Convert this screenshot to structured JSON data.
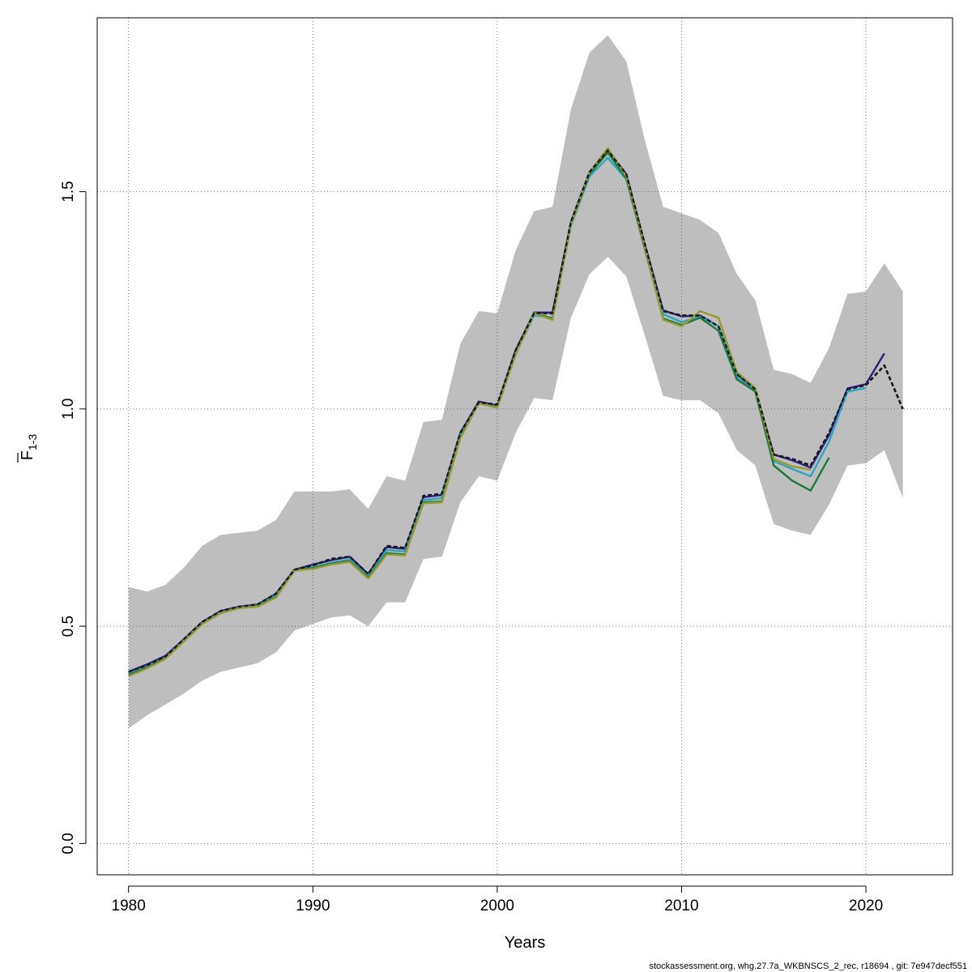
{
  "chart_data": {
    "type": "line",
    "xlabel": "Years",
    "ylabel_main": "F",
    "ylabel_sub": "1-3",
    "xlim": [
      1978.3,
      2024.7
    ],
    "ylim": [
      -0.072,
      1.9
    ],
    "x_ticks": [
      1980,
      1990,
      2000,
      2010,
      2020
    ],
    "y_ticks": [
      0.0,
      0.5,
      1.0,
      1.5
    ],
    "x_tick_labels": [
      "1980",
      "1990",
      "2000",
      "2010",
      "2020"
    ],
    "y_tick_labels": [
      "0.0",
      "0.5",
      "1.0",
      "1.5"
    ],
    "grid": true,
    "band": {
      "color": "#bebebe",
      "x": [
        1980,
        1981,
        1982,
        1983,
        1984,
        1985,
        1986,
        1987,
        1988,
        1989,
        1990,
        1991,
        1992,
        1993,
        1994,
        1995,
        1996,
        1997,
        1998,
        1999,
        2000,
        2001,
        2002,
        2003,
        2004,
        2005,
        2006,
        2007,
        2008,
        2009,
        2010,
        2011,
        2012,
        2013,
        2014,
        2015,
        2016,
        2017,
        2018,
        2019,
        2020,
        2021,
        2022
      ],
      "lower": [
        0.265,
        0.295,
        0.32,
        0.345,
        0.375,
        0.395,
        0.405,
        0.415,
        0.44,
        0.49,
        0.505,
        0.52,
        0.525,
        0.5,
        0.555,
        0.555,
        0.655,
        0.66,
        0.785,
        0.845,
        0.835,
        0.945,
        1.025,
        1.02,
        1.21,
        1.31,
        1.35,
        1.305,
        1.17,
        1.03,
        1.02,
        1.02,
        0.99,
        0.905,
        0.87,
        0.735,
        0.72,
        0.71,
        0.78,
        0.87,
        0.875,
        0.905,
        0.795
      ],
      "upper": [
        0.59,
        0.58,
        0.595,
        0.635,
        0.685,
        0.71,
        0.715,
        0.72,
        0.745,
        0.81,
        0.81,
        0.81,
        0.815,
        0.77,
        0.845,
        0.835,
        0.97,
        0.975,
        1.15,
        1.225,
        1.22,
        1.365,
        1.455,
        1.465,
        1.69,
        1.82,
        1.86,
        1.8,
        1.62,
        1.465,
        1.45,
        1.435,
        1.405,
        1.31,
        1.25,
        1.09,
        1.08,
        1.06,
        1.14,
        1.265,
        1.27,
        1.335,
        1.27
      ]
    },
    "series": [
      {
        "color": "#1a1a1a",
        "dashed": true,
        "x": [
          1980,
          1981,
          1982,
          1983,
          1984,
          1985,
          1986,
          1987,
          1988,
          1989,
          1990,
          1991,
          1992,
          1993,
          1994,
          1995,
          1996,
          1997,
          1998,
          1999,
          2000,
          2001,
          2002,
          2003,
          2004,
          2005,
          2006,
          2007,
          2008,
          2009,
          2010,
          2011,
          2012,
          2013,
          2014,
          2015,
          2016,
          2017,
          2018,
          2019,
          2020,
          2021,
          2022
        ],
        "values": [
          0.395,
          0.41,
          0.43,
          0.47,
          0.51,
          0.535,
          0.545,
          0.55,
          0.575,
          0.63,
          0.64,
          0.655,
          0.66,
          0.62,
          0.685,
          0.68,
          0.8,
          0.805,
          0.945,
          1.015,
          1.01,
          1.135,
          1.22,
          1.22,
          1.43,
          1.545,
          1.595,
          1.54,
          1.38,
          1.225,
          1.215,
          1.215,
          1.19,
          1.08,
          1.045,
          0.895,
          0.885,
          0.87,
          0.945,
          1.045,
          1.055,
          1.1,
          1.0
        ]
      },
      {
        "color": "#2c1f83",
        "x": [
          1980,
          1981,
          1982,
          1983,
          1984,
          1985,
          1986,
          1987,
          1988,
          1989,
          1990,
          1991,
          1992,
          1993,
          1994,
          1995,
          1996,
          1997,
          1998,
          1999,
          2000,
          2001,
          2002,
          2003,
          2004,
          2005,
          2006,
          2007,
          2008,
          2009,
          2010,
          2011,
          2012,
          2013,
          2014,
          2015,
          2016,
          2017,
          2018,
          2019,
          2020,
          2021
        ],
        "values": [
          0.395,
          0.412,
          0.432,
          0.47,
          0.51,
          0.535,
          0.545,
          0.55,
          0.575,
          0.63,
          0.642,
          0.652,
          0.66,
          0.62,
          0.682,
          0.678,
          0.797,
          0.802,
          0.945,
          1.017,
          1.008,
          1.135,
          1.222,
          1.222,
          1.43,
          1.545,
          1.595,
          1.54,
          1.38,
          1.227,
          1.213,
          1.215,
          1.19,
          1.078,
          1.045,
          0.895,
          0.882,
          0.865,
          0.94,
          1.047,
          1.057,
          1.128
        ]
      },
      {
        "color": "#2ba7c3",
        "x": [
          1980,
          1981,
          1982,
          1983,
          1984,
          1985,
          1986,
          1987,
          1988,
          1989,
          1990,
          1991,
          1992,
          1993,
          1994,
          1995,
          1996,
          1997,
          1998,
          1999,
          2000,
          2001,
          2002,
          2003,
          2004,
          2005,
          2006,
          2007,
          2008,
          2009,
          2010,
          2011,
          2012,
          2013,
          2014,
          2015,
          2016,
          2017,
          2018,
          2019,
          2020
        ],
        "values": [
          0.39,
          0.408,
          0.428,
          0.468,
          0.508,
          0.532,
          0.543,
          0.548,
          0.572,
          0.628,
          0.636,
          0.646,
          0.654,
          0.615,
          0.675,
          0.672,
          0.79,
          0.795,
          0.94,
          1.013,
          1.005,
          1.128,
          1.215,
          1.21,
          1.422,
          1.535,
          1.578,
          1.528,
          1.372,
          1.218,
          1.2,
          1.212,
          1.19,
          1.075,
          1.042,
          0.88,
          0.862,
          0.845,
          0.925,
          1.04,
          1.048
        ]
      },
      {
        "color": "#1a7a3a",
        "x": [
          1980,
          1981,
          1982,
          1983,
          1984,
          1985,
          1986,
          1987,
          1988,
          1989,
          1990,
          1991,
          1992,
          1993,
          1994,
          1995,
          1996,
          1997,
          1998,
          1999,
          2000,
          2001,
          2002,
          2003,
          2004,
          2005,
          2006,
          2007,
          2008,
          2009,
          2010,
          2011,
          2012,
          2013,
          2014,
          2015,
          2016,
          2017,
          2018
        ],
        "values": [
          0.388,
          0.405,
          0.426,
          0.466,
          0.506,
          0.53,
          0.542,
          0.546,
          0.568,
          0.628,
          0.634,
          0.644,
          0.65,
          0.612,
          0.668,
          0.665,
          0.785,
          0.787,
          0.935,
          1.013,
          1.004,
          1.128,
          1.222,
          1.207,
          1.425,
          1.54,
          1.59,
          1.53,
          1.37,
          1.208,
          1.193,
          1.21,
          1.18,
          1.068,
          1.04,
          0.87,
          0.835,
          0.812,
          0.888
        ]
      },
      {
        "color": "#9a9a2a",
        "x": [
          1980,
          1981,
          1982,
          1983,
          1984,
          1985,
          1986,
          1987,
          1988,
          1989,
          1990,
          1991,
          1992,
          1993,
          1994,
          1995,
          1996,
          1997,
          1998,
          1999,
          2000,
          2001,
          2002,
          2003,
          2004,
          2005,
          2006,
          2007,
          2008,
          2009,
          2010,
          2011,
          2012,
          2013,
          2014,
          2015,
          2016,
          2017
        ],
        "values": [
          0.385,
          0.403,
          0.425,
          0.465,
          0.505,
          0.53,
          0.542,
          0.545,
          0.566,
          0.628,
          0.632,
          0.642,
          0.648,
          0.61,
          0.665,
          0.663,
          0.783,
          0.785,
          0.932,
          1.013,
          1.003,
          1.125,
          1.22,
          1.205,
          1.425,
          1.545,
          1.6,
          1.535,
          1.375,
          1.205,
          1.19,
          1.225,
          1.21,
          1.085,
          1.048,
          0.885,
          0.868,
          0.86
        ]
      }
    ]
  },
  "footer": {
    "text": "stockassessment.org, whg.27.7a_WKBNSCS_2_rec, r18694 , git: 7e947decf551"
  }
}
